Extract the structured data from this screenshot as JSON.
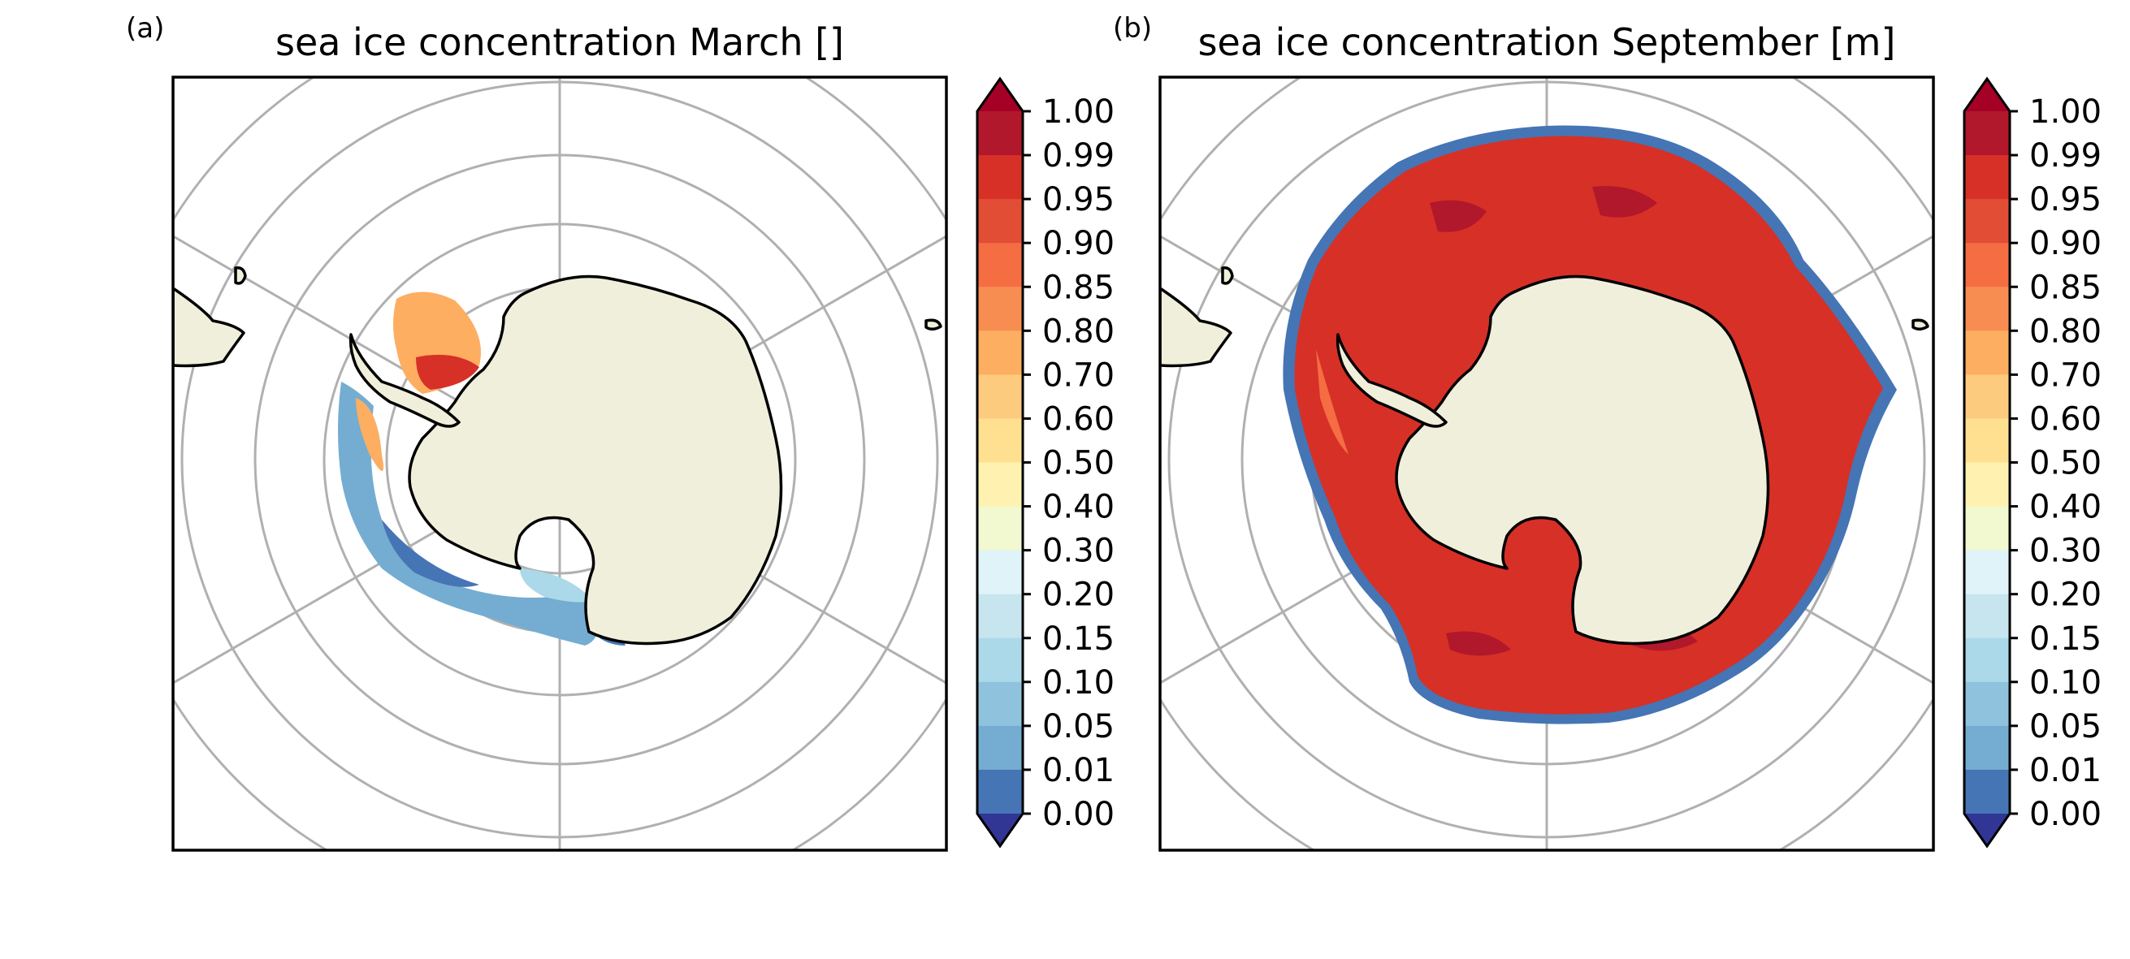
{
  "panels": [
    {
      "letter": "(a)",
      "title": "sea ice concentration March []",
      "month": "March"
    },
    {
      "letter": "(b)",
      "title": "sea ice concentration September [m]",
      "month": "September"
    }
  ],
  "colorbar": {
    "labels": [
      "1.00",
      "0.99",
      "0.95",
      "0.90",
      "0.85",
      "0.80",
      "0.70",
      "0.60",
      "0.50",
      "0.40",
      "0.30",
      "0.20",
      "0.15",
      "0.10",
      "0.05",
      "0.01",
      "0.00"
    ],
    "colors_top_to_bottom": [
      "#b2182b",
      "#d73027",
      "#e24d36",
      "#f46d43",
      "#f88d52",
      "#fdae61",
      "#fdcb7e",
      "#fee090",
      "#fff2b0",
      "#f2f8cf",
      "#e0f3f8",
      "#c6e5ef",
      "#abd9e9",
      "#8fc3dd",
      "#74add1",
      "#4575b4"
    ],
    "over_color": "#a50026",
    "under_color": "#313695",
    "extend": "both"
  },
  "map": {
    "projection": "south-polar-stereographic",
    "land_color": "#efefdb",
    "coastline_color": "#000000",
    "gridline_color": "#b0b0b0"
  }
}
